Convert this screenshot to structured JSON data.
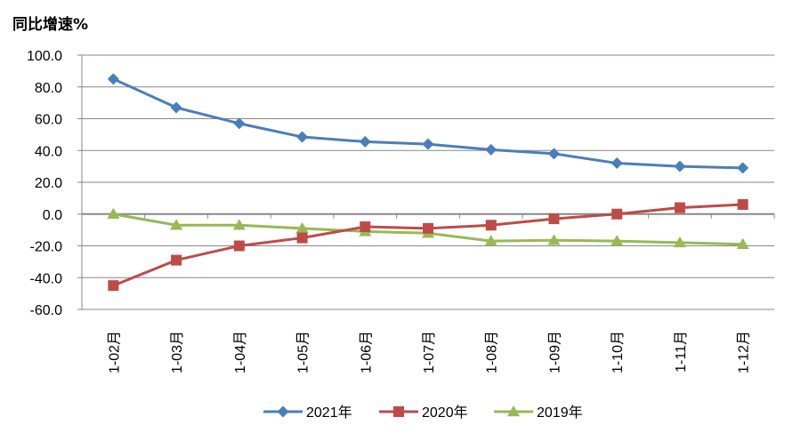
{
  "chart_data": {
    "type": "line",
    "ylabel": "同比增速%",
    "xlabel": "",
    "title": "",
    "ylim": [
      -60,
      100
    ],
    "ytick_step": 20,
    "ytick_labels": [
      "100.0",
      "80.0",
      "60.0",
      "40.0",
      "20.0",
      "0.0",
      "-20.0",
      "-40.0",
      "-60.0"
    ],
    "grid": true,
    "legend_position": "bottom-center",
    "categories": [
      "1-02月",
      "1-03月",
      "1-04月",
      "1-05月",
      "1-06月",
      "1-07月",
      "1-08月",
      "1-09月",
      "1-10月",
      "1-11月",
      "1-12月"
    ],
    "series": [
      {
        "name": "2021年",
        "color": "#4A7EBB",
        "marker": "diamond",
        "values": [
          85.0,
          67.0,
          57.0,
          48.5,
          45.5,
          44.0,
          40.5,
          38.0,
          32.0,
          30.0,
          29.0
        ]
      },
      {
        "name": "2020年",
        "color": "#BE4B48",
        "marker": "square",
        "values": [
          -45.0,
          -29.0,
          -20.0,
          -15.0,
          -8.0,
          -9.0,
          -7.0,
          -3.0,
          0.0,
          4.0,
          6.0
        ]
      },
      {
        "name": "2019年",
        "color": "#98B954",
        "marker": "triangle",
        "values": [
          0.0,
          -7.0,
          -7.0,
          -9.0,
          -11.0,
          -12.0,
          -17.0,
          -16.5,
          -17.0,
          -18.0,
          -19.0
        ]
      }
    ]
  }
}
